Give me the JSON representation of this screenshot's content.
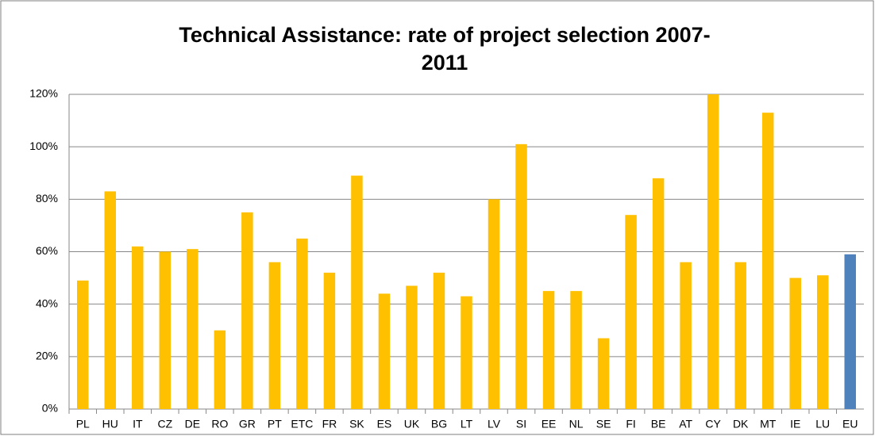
{
  "chart_data": {
    "type": "bar",
    "title": [
      "Technical Assistance: rate of project selection 2007-",
      "2011"
    ],
    "categories": [
      "PL",
      "HU",
      "IT",
      "CZ",
      "DE",
      "RO",
      "GR",
      "PT",
      "ETC",
      "FR",
      "SK",
      "ES",
      "UK",
      "BG",
      "LT",
      "LV",
      "SI",
      "EE",
      "NL",
      "SE",
      "FI",
      "BE",
      "AT",
      "CY",
      "DK",
      "MT",
      "IE",
      "LU",
      "EU"
    ],
    "values": [
      49,
      83,
      62,
      60,
      61,
      30,
      75,
      56,
      65,
      52,
      89,
      44,
      47,
      52,
      43,
      80,
      101,
      45,
      45,
      27,
      74,
      88,
      56,
      120,
      56,
      113,
      50,
      51,
      59
    ],
    "colors": [
      "#ffc000",
      "#ffc000",
      "#ffc000",
      "#ffc000",
      "#ffc000",
      "#ffc000",
      "#ffc000",
      "#ffc000",
      "#ffc000",
      "#ffc000",
      "#ffc000",
      "#ffc000",
      "#ffc000",
      "#ffc000",
      "#ffc000",
      "#ffc000",
      "#ffc000",
      "#ffc000",
      "#ffc000",
      "#ffc000",
      "#ffc000",
      "#ffc000",
      "#ffc000",
      "#ffc000",
      "#ffc000",
      "#ffc000",
      "#ffc000",
      "#ffc000",
      "#4f81bd"
    ],
    "ylim": [
      0,
      120
    ],
    "yticks": [
      {
        "value": 0,
        "label": "0%"
      },
      {
        "value": 20,
        "label": "20%"
      },
      {
        "value": 40,
        "label": "40%"
      },
      {
        "value": 60,
        "label": "60%"
      },
      {
        "value": 80,
        "label": "80%"
      },
      {
        "value": 100,
        "label": "100%"
      },
      {
        "value": 120,
        "label": "120%"
      }
    ],
    "grid": true
  }
}
